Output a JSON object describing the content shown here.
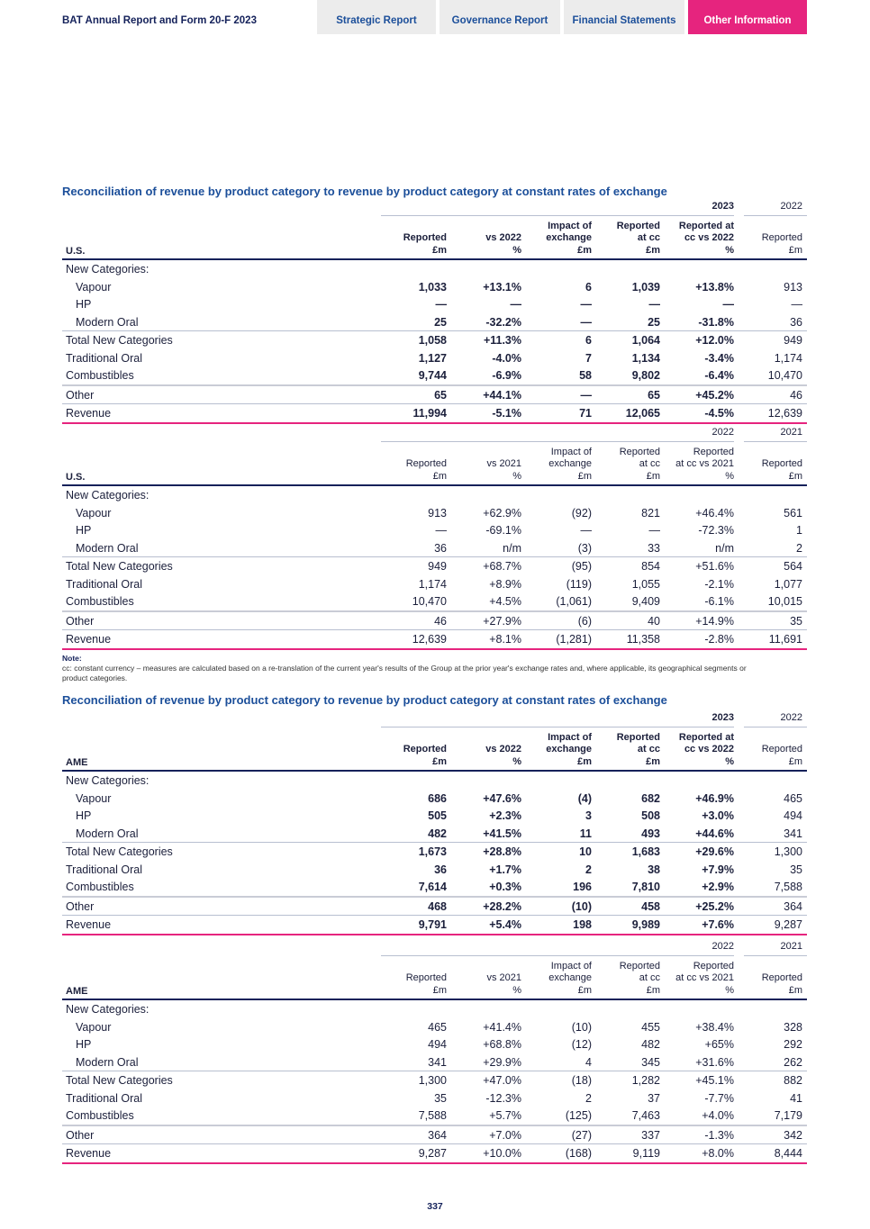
{
  "header": {
    "doc_title": "BAT Annual Report and Form 20-F 2023",
    "tabs": [
      {
        "label": "Strategic Report",
        "active": false
      },
      {
        "label": "Governance Report",
        "active": false
      },
      {
        "label": "Financial Statements",
        "active": false
      },
      {
        "label": "Other Information",
        "active": true
      }
    ]
  },
  "sections": [
    {
      "title": "Reconciliation of revenue by product category to revenue by product category at constant rates of exchange"
    },
    {
      "title": "Reconciliation of revenue by product category to revenue by product category at constant rates of exchange"
    }
  ],
  "tables": [
    {
      "segment": "U.S.",
      "bold": true,
      "year_current": "2023",
      "year_prior": "2022",
      "columns": [
        "Reported\n£m",
        "vs 2022\n%",
        "Impact of\nexchange\n£m",
        "Reported\nat cc\n£m",
        "Reported at\ncc vs 2022\n%",
        "Reported\n£m"
      ],
      "rows": [
        {
          "label": "New Categories:",
          "values": [
            "",
            "",
            "",
            "",
            "",
            ""
          ]
        },
        {
          "label": "Vapour",
          "indent": true,
          "values": [
            "1,033",
            "+13.1%",
            "6",
            "1,039",
            "+13.8%",
            "913"
          ]
        },
        {
          "label": "HP",
          "indent": true,
          "values": [
            "—",
            "—",
            "—",
            "—",
            "—",
            "—"
          ]
        },
        {
          "label": "Modern Oral",
          "indent": true,
          "values": [
            "25",
            "-32.2%",
            "—",
            "25",
            "-31.8%",
            "36"
          ]
        },
        {
          "label": "Total New Categories",
          "values": [
            "1,058",
            "+11.3%",
            "6",
            "1,064",
            "+12.0%",
            "949"
          ]
        },
        {
          "label": "Traditional Oral",
          "values": [
            "1,127",
            "-4.0%",
            "7",
            "1,134",
            "-3.4%",
            "1,174"
          ]
        },
        {
          "label": "Combustibles",
          "values": [
            "9,744",
            "-6.9%",
            "58",
            "9,802",
            "-6.4%",
            "10,470"
          ]
        },
        {
          "label": "Other",
          "values": [
            "65",
            "+44.1%",
            "—",
            "65",
            "+45.2%",
            "46"
          ]
        },
        {
          "label": "Revenue",
          "values": [
            "11,994",
            "-5.1%",
            "71",
            "12,065",
            "-4.5%",
            "12,639"
          ]
        }
      ]
    },
    {
      "segment": "U.S.",
      "bold": false,
      "year_current": "2022",
      "year_prior": "2021",
      "columns": [
        "Reported\n£m",
        "vs 2021\n%",
        "Impact of\nexchange\n£m",
        "Reported\nat cc\n£m",
        "Reported\nat cc vs 2021\n%",
        "Reported\n£m"
      ],
      "rows": [
        {
          "label": "New Categories:",
          "values": [
            "",
            "",
            "",
            "",
            "",
            ""
          ]
        },
        {
          "label": "Vapour",
          "indent": true,
          "values": [
            "913",
            "+62.9%",
            "(92)",
            "821",
            "+46.4%",
            "561"
          ]
        },
        {
          "label": "HP",
          "indent": true,
          "values": [
            "—",
            "-69.1%",
            "—",
            "—",
            "-72.3%",
            "1"
          ]
        },
        {
          "label": "Modern Oral",
          "indent": true,
          "values": [
            "36",
            "n/m",
            "(3)",
            "33",
            "n/m",
            "2"
          ]
        },
        {
          "label": "Total New Categories",
          "values": [
            "949",
            "+68.7%",
            "(95)",
            "854",
            "+51.6%",
            "564"
          ]
        },
        {
          "label": "Traditional Oral",
          "values": [
            "1,174",
            "+8.9%",
            "(119)",
            "1,055",
            "-2.1%",
            "1,077"
          ]
        },
        {
          "label": "Combustibles",
          "values": [
            "10,470",
            "+4.5%",
            "(1,061)",
            "9,409",
            "-6.1%",
            "10,015"
          ]
        },
        {
          "label": "Other",
          "values": [
            "46",
            "+27.9%",
            "(6)",
            "40",
            "+14.9%",
            "35"
          ]
        },
        {
          "label": "Revenue",
          "values": [
            "12,639",
            "+8.1%",
            "(1,281)",
            "11,358",
            "-2.8%",
            "11,691"
          ]
        }
      ]
    },
    {
      "segment": "AME",
      "bold": true,
      "year_current": "2023",
      "year_prior": "2022",
      "columns": [
        "Reported\n£m",
        "vs 2022\n%",
        "Impact of\nexchange\n£m",
        "Reported\nat cc\n£m",
        "Reported at\ncc vs 2022\n%",
        "Reported\n£m"
      ],
      "rows": [
        {
          "label": "New Categories:",
          "values": [
            "",
            "",
            "",
            "",
            "",
            ""
          ]
        },
        {
          "label": "Vapour",
          "indent": true,
          "values": [
            "686",
            "+47.6%",
            "(4)",
            "682",
            "+46.9%",
            "465"
          ]
        },
        {
          "label": "HP",
          "indent": true,
          "values": [
            "505",
            "+2.3%",
            "3",
            "508",
            "+3.0%",
            "494"
          ]
        },
        {
          "label": "Modern Oral",
          "indent": true,
          "values": [
            "482",
            "+41.5%",
            "11",
            "493",
            "+44.6%",
            "341"
          ]
        },
        {
          "label": "Total New Categories",
          "values": [
            "1,673",
            "+28.8%",
            "10",
            "1,683",
            "+29.6%",
            "1,300"
          ]
        },
        {
          "label": "Traditional Oral",
          "values": [
            "36",
            "+1.7%",
            "2",
            "38",
            "+7.9%",
            "35"
          ]
        },
        {
          "label": "Combustibles",
          "values": [
            "7,614",
            "+0.3%",
            "196",
            "7,810",
            "+2.9%",
            "7,588"
          ]
        },
        {
          "label": "Other",
          "values": [
            "468",
            "+28.2%",
            "(10)",
            "458",
            "+25.2%",
            "364"
          ]
        },
        {
          "label": "Revenue",
          "values": [
            "9,791",
            "+5.4%",
            "198",
            "9,989",
            "+7.6%",
            "9,287"
          ]
        }
      ]
    },
    {
      "segment": "AME",
      "bold": false,
      "year_current": "2022",
      "year_prior": "2021",
      "columns": [
        "Reported\n£m",
        "vs 2021\n%",
        "Impact of\nexchange\n£m",
        "Reported\nat cc\n£m",
        "Reported\nat cc vs 2021\n%",
        "Reported\n£m"
      ],
      "rows": [
        {
          "label": "New Categories:",
          "values": [
            "",
            "",
            "",
            "",
            "",
            ""
          ]
        },
        {
          "label": "Vapour",
          "indent": true,
          "values": [
            "465",
            "+41.4%",
            "(10)",
            "455",
            "+38.4%",
            "328"
          ]
        },
        {
          "label": "HP",
          "indent": true,
          "values": [
            "494",
            "+68.8%",
            "(12)",
            "482",
            "+65%",
            "292"
          ]
        },
        {
          "label": "Modern Oral",
          "indent": true,
          "values": [
            "341",
            "+29.9%",
            "4",
            "345",
            "+31.6%",
            "262"
          ]
        },
        {
          "label": "Total New Categories",
          "values": [
            "1,300",
            "+47.0%",
            "(18)",
            "1,282",
            "+45.1%",
            "882"
          ]
        },
        {
          "label": "Traditional Oral",
          "values": [
            "35",
            "-12.3%",
            "2",
            "37",
            "-7.7%",
            "41"
          ]
        },
        {
          "label": "Combustibles",
          "values": [
            "7,588",
            "+5.7%",
            "(125)",
            "7,463",
            "+4.0%",
            "7,179"
          ]
        },
        {
          "label": "Other",
          "values": [
            "364",
            "+7.0%",
            "(27)",
            "337",
            "-1.3%",
            "342"
          ]
        },
        {
          "label": "Revenue",
          "values": [
            "9,287",
            "+10.0%",
            "(168)",
            "9,119",
            "+8.0%",
            "8,444"
          ]
        }
      ]
    }
  ],
  "note": {
    "heading": "Note:",
    "text": "cc: constant currency – measures are calculated based on a re-translation of the current year's results of the Group at the prior year's exchange rates and, where applicable, its geographical segments or product categories."
  },
  "page_number": "337",
  "colors": {
    "accent": "#e6247e",
    "title_blue": "#1c4f9a",
    "navy": "#14215a"
  }
}
